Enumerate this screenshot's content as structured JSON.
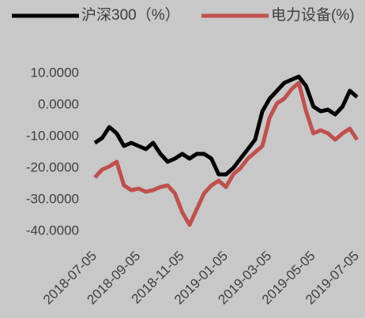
{
  "chart_data": {
    "type": "line",
    "categories": [
      "2018-07-05",
      null,
      null,
      null,
      null,
      null,
      "2018-09-05",
      null,
      null,
      null,
      null,
      null,
      "2018-11-05",
      null,
      null,
      null,
      null,
      null,
      "2019-01-05",
      null,
      null,
      null,
      null,
      null,
      "2019-03-05",
      null,
      null,
      null,
      null,
      null,
      "2019-05-05",
      null,
      null,
      null,
      null,
      null,
      "2019-07-05"
    ],
    "series": [
      {
        "name": "沪深300（%）",
        "color": "#000000",
        "values": [
          -12,
          -10.5,
          -7,
          -9,
          -13,
          -12,
          -13,
          -14,
          -12,
          -15.5,
          -18,
          -17,
          -15.5,
          -17,
          -15.5,
          -15.5,
          -17,
          -22,
          -22,
          -20,
          -17,
          -14,
          -11,
          -2,
          2,
          4.5,
          7,
          8,
          9,
          6,
          -0.5,
          -2,
          -1.5,
          -3,
          -0.5,
          4.5,
          2.5
        ]
      },
      {
        "name": "电力设备(%)",
        "color": "#c0504d",
        "values": [
          -23,
          -20.5,
          -19.5,
          -18,
          -25.5,
          -27,
          -26.5,
          -27.5,
          -27,
          -26,
          -25.5,
          -28,
          -34,
          -38,
          -33,
          -28,
          -25.5,
          -24,
          -26,
          -22,
          -20,
          -17,
          -15,
          -13,
          -4,
          0.5,
          2,
          5,
          7,
          -2,
          -9,
          -8,
          -9,
          -11,
          -9,
          -7.5,
          -11
        ]
      }
    ],
    "ylim": [
      -40,
      10
    ],
    "yticks": [
      {
        "value": 10,
        "label": "10.0000"
      },
      {
        "value": 0,
        "label": "0.0000"
      },
      {
        "value": -10,
        "label": "-10.0000"
      },
      {
        "value": -20,
        "label": "-20.0000"
      },
      {
        "value": -30,
        "label": "-30.0000"
      },
      {
        "value": -40,
        "label": "-40.0000"
      }
    ],
    "legend": "top"
  }
}
